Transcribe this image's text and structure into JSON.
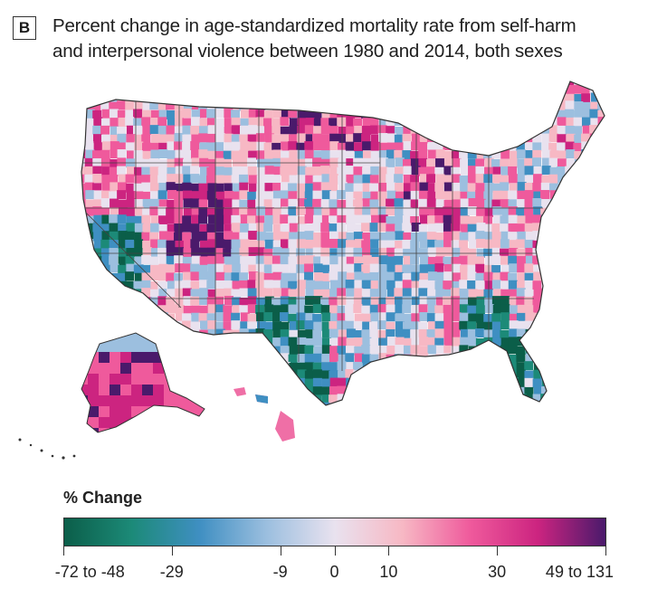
{
  "panel": {
    "label": "B"
  },
  "title": {
    "line1": "Percent change in age-standardized mortality rate from self-harm",
    "line2": "and interpersonal violence between 1980 and 2014, both sexes"
  },
  "legend": {
    "title": "% Change",
    "stops": [
      {
        "label": "-72 to -48",
        "pos": 0.0
      },
      {
        "label": "-29",
        "pos": 0.2
      },
      {
        "label": "-9",
        "pos": 0.4
      },
      {
        "label": "0",
        "pos": 0.5
      },
      {
        "label": "10",
        "pos": 0.6
      },
      {
        "label": "30",
        "pos": 0.8
      },
      {
        "label": "49 to 131",
        "pos": 1.0
      }
    ],
    "colors": [
      "#0b5e49",
      "#1c8a78",
      "#3f8fc2",
      "#9cbfdf",
      "#e9e2ef",
      "#f7b8c4",
      "#ef5a9c",
      "#cc2480",
      "#4a1a6b"
    ]
  }
}
